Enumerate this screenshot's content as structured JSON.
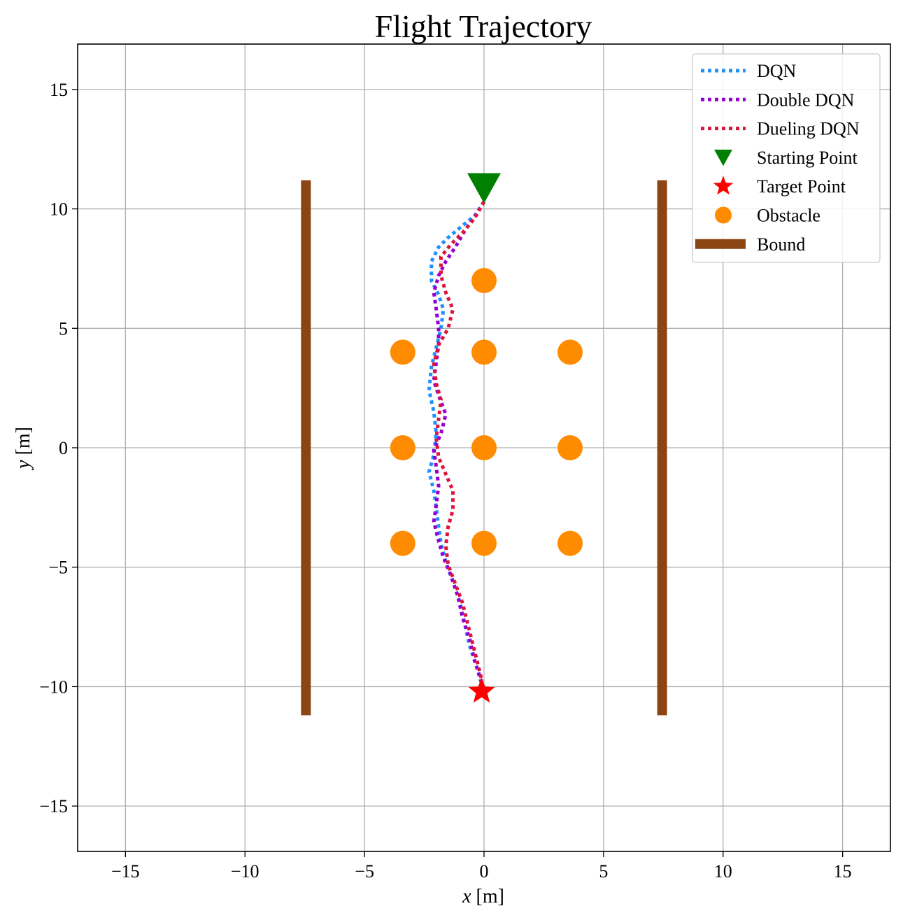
{
  "chart_data": {
    "type": "line",
    "title": "Flight Trajectory",
    "xlabel_var": "x",
    "xlabel_unit": " [m]",
    "ylabel_var": "y",
    "ylabel_unit": " [m]",
    "xlim": [
      -17,
      17
    ],
    "ylim": [
      -16.9,
      16.9
    ],
    "xticks": [
      -15,
      -10,
      -5,
      0,
      5,
      10,
      15
    ],
    "yticks": [
      -15,
      -10,
      -5,
      0,
      5,
      10,
      15
    ],
    "xtick_labels": [
      "−15",
      "−10",
      "−5",
      "0",
      "5",
      "10",
      "15"
    ],
    "ytick_labels": [
      "−15",
      "−10",
      "−5",
      "0",
      "5",
      "10",
      "15"
    ],
    "grid": true,
    "legend_position": "top-right",
    "series": [
      {
        "name": "DQN",
        "color": "#1e90ff",
        "style": "dotted",
        "x": [
          0.0,
          -0.4,
          -0.9,
          -1.5,
          -1.9,
          -2.2,
          -2.2,
          -1.9,
          -1.7,
          -1.8,
          -2.0,
          -2.2,
          -2.3,
          -2.1,
          -2.0,
          -2.1,
          -2.3,
          -2.1,
          -2.0,
          -1.9,
          -1.8,
          -1.6,
          -1.3,
          -1.0,
          -0.8,
          -0.6,
          -0.3,
          -0.1
        ],
        "y": [
          10.3,
          9.7,
          9.3,
          8.8,
          8.4,
          7.8,
          7.0,
          6.4,
          5.8,
          5.0,
          4.2,
          3.4,
          2.4,
          1.5,
          0.6,
          -0.3,
          -1.0,
          -1.8,
          -2.5,
          -3.3,
          -4.0,
          -4.8,
          -5.6,
          -6.5,
          -7.4,
          -8.3,
          -9.2,
          -9.9
        ]
      },
      {
        "name": "Double DQN",
        "color": "#9400d3",
        "style": "dotted",
        "x": [
          0.0,
          -0.3,
          -0.8,
          -1.2,
          -1.6,
          -1.9,
          -2.1,
          -2.0,
          -1.9,
          -1.9,
          -2.0,
          -2.1,
          -1.9,
          -1.6,
          -1.8,
          -2.1,
          -2.0,
          -1.9,
          -2.0,
          -2.1,
          -1.9,
          -1.7,
          -1.4,
          -1.1,
          -0.9,
          -0.6,
          -0.4,
          -0.1
        ],
        "y": [
          10.3,
          9.8,
          9.1,
          8.4,
          7.8,
          7.2,
          6.5,
          5.8,
          5.0,
          4.3,
          3.6,
          2.8,
          2.2,
          1.4,
          0.6,
          -0.1,
          -0.8,
          -1.6,
          -2.4,
          -3.1,
          -3.9,
          -4.6,
          -5.3,
          -6.2,
          -7.1,
          -8.0,
          -8.9,
          -9.8
        ]
      },
      {
        "name": "Dueling DQN",
        "color": "#dc143c",
        "style": "dotted",
        "x": [
          0.0,
          -0.4,
          -0.9,
          -1.4,
          -1.8,
          -1.8,
          -1.6,
          -1.3,
          -1.5,
          -1.9,
          -2.1,
          -2.0,
          -1.8,
          -1.9,
          -2.0,
          -1.9,
          -1.6,
          -1.3,
          -1.3,
          -1.5,
          -1.6,
          -1.5,
          -1.2,
          -0.9,
          -0.7,
          -0.5,
          -0.3,
          -0.1
        ],
        "y": [
          10.3,
          9.6,
          9.0,
          8.5,
          8.0,
          7.2,
          6.5,
          5.8,
          5.0,
          4.3,
          3.5,
          2.7,
          2.0,
          1.2,
          0.4,
          -0.4,
          -1.1,
          -1.8,
          -2.6,
          -3.3,
          -4.1,
          -4.9,
          -5.7,
          -6.5,
          -7.3,
          -8.1,
          -8.9,
          -9.7
        ]
      }
    ],
    "starting_point": {
      "name": "Starting Point",
      "x": 0.0,
      "y": 10.9,
      "color": "#008000",
      "marker": "triangle-down"
    },
    "target_point": {
      "name": "Target Point",
      "x": -0.1,
      "y": -10.2,
      "color": "#ff0000",
      "marker": "star"
    },
    "obstacles": {
      "name": "Obstacle",
      "color": "#ff8c00",
      "points": [
        {
          "x": 0.0,
          "y": 7.0
        },
        {
          "x": -3.4,
          "y": 4.0
        },
        {
          "x": 0.0,
          "y": 4.0
        },
        {
          "x": 3.6,
          "y": 4.0
        },
        {
          "x": -3.4,
          "y": 0.0
        },
        {
          "x": 0.0,
          "y": 0.0
        },
        {
          "x": 3.6,
          "y": 0.0
        },
        {
          "x": -3.4,
          "y": -4.0
        },
        {
          "x": 0.0,
          "y": -4.0
        },
        {
          "x": 3.6,
          "y": -4.0
        }
      ]
    },
    "bounds": {
      "name": "Bound",
      "color": "#8b4513",
      "lines": [
        {
          "x": -7.45,
          "y": [
            -11.2,
            11.2
          ]
        },
        {
          "x": 7.45,
          "y": [
            -11.2,
            11.2
          ]
        }
      ]
    }
  }
}
